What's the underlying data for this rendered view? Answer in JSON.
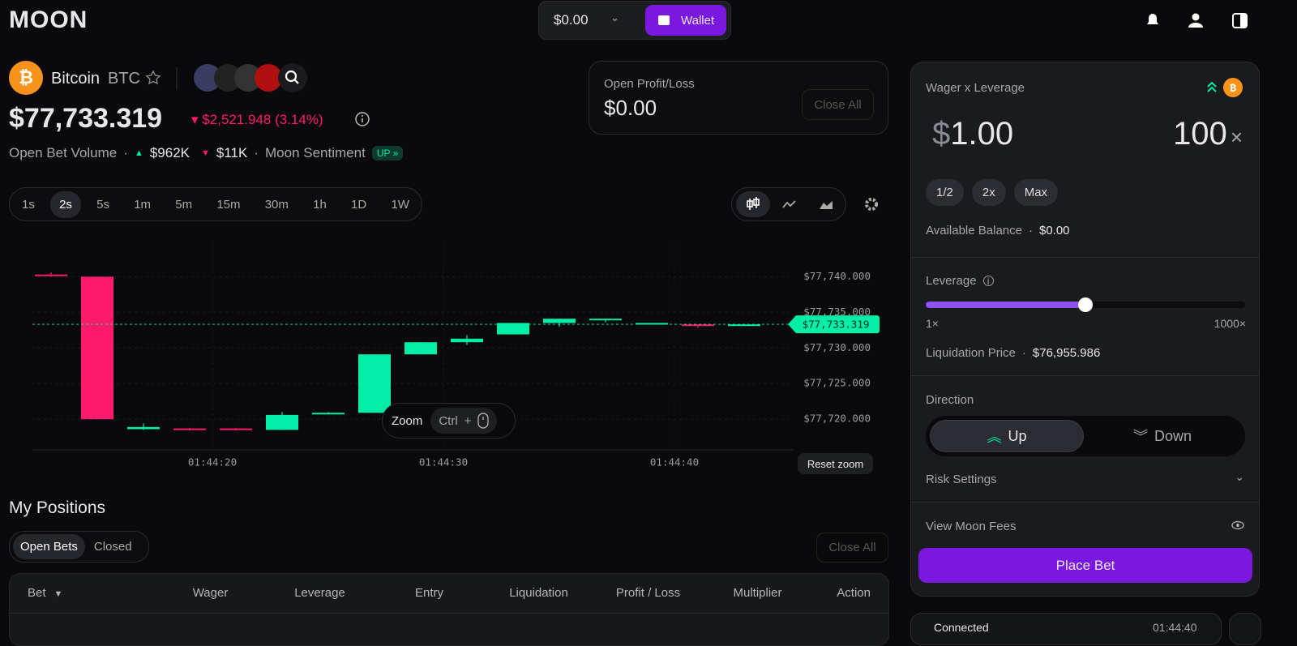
{
  "header": {
    "logo": "MOON",
    "balance": "$0.00",
    "wallet": "Wallet"
  },
  "asset": {
    "name": "Bitcoin",
    "symbol": "BTC",
    "price": "$77,733.319",
    "change": "$2,521.948 (3.14%)",
    "volume_label": "Open Bet Volume",
    "up_volume": "$962K",
    "down_volume": "$11K",
    "sentiment_label": "Moon Sentiment",
    "sentiment": "UP"
  },
  "pnl": {
    "label": "Open Profit/Loss",
    "value": "$0.00",
    "button": "Close All"
  },
  "intervals": [
    "1s",
    "2s",
    "5s",
    "1m",
    "5m",
    "15m",
    "30m",
    "1h",
    "1D",
    "1W"
  ],
  "chart_data": {
    "type": "candlestick",
    "open": [
      77740.3,
      77740.0,
      77718.6,
      77718.7,
      77718.7,
      77718.5,
      77720.7,
      77720.9,
      77729.1,
      77730.8,
      77731.9,
      77733.5,
      77733.9,
      77733.4,
      77733.3,
      77733.2
    ],
    "high": [
      77740.6,
      77740.0,
      77719.4,
      77718.8,
      77718.8,
      77721.0,
      77721.0,
      77729.1,
      77730.8,
      77731.8,
      77733.5,
      77734.1,
      77734.1,
      77733.5,
      77733.3,
      77733.3
    ],
    "low": [
      77740.0,
      77720.0,
      77718.5,
      77718.4,
      77718.4,
      77718.5,
      77720.7,
      77720.9,
      77729.1,
      77730.4,
      77731.9,
      77733.0,
      77733.6,
      77733.4,
      77732.8,
      77733.2
    ],
    "close": [
      77740.1,
      77720.0,
      77718.9,
      77718.5,
      77718.5,
      77720.6,
      77720.9,
      77729.1,
      77730.8,
      77731.3,
      77733.5,
      77734.1,
      77734.1,
      77733.5,
      77733.1,
      77733.3
    ],
    "up_color": "#00eea6",
    "down_color": "#ff1a6c",
    "ylim": [
      77715.7,
      77744.7
    ],
    "yticks": [
      {
        "value": 77720,
        "label": "$77,720.000"
      },
      {
        "value": 77725,
        "label": "$77,725.000"
      },
      {
        "value": 77730,
        "label": "$77,730.000"
      },
      {
        "value": 77735,
        "label": "$77,735.000"
      },
      {
        "value": 77740,
        "label": "$77,740.000"
      }
    ],
    "xticks": [
      "01:44:20",
      "01:44:30",
      "01:44:40"
    ],
    "last_price": {
      "value": 77733.319,
      "label": "$77,733.319"
    },
    "grid": true,
    "zoom": "Zoom",
    "zoom_key": "Ctrl",
    "zoom_plus": "+",
    "reset": "Reset zoom"
  },
  "positions": {
    "title": "My Positions",
    "tabs": [
      "Open Bets",
      "Closed"
    ],
    "close_all": "Close All",
    "columns": [
      "Bet",
      "Wager",
      "Leverage",
      "Entry",
      "Liquidation",
      "Profit / Loss",
      "Multiplier",
      "Action"
    ]
  },
  "bet_panel": {
    "title": "Wager x Leverage",
    "currency": "$",
    "wager": "1.00",
    "leverage": "100",
    "times": "×",
    "quick": [
      "1/2",
      "2x",
      "Max"
    ],
    "balance_label": "Available Balance",
    "balance": "$0.00",
    "leverage_label": "Leverage",
    "lev_min": "1×",
    "lev_max": "1000×",
    "liq_label": "Liquidation Price",
    "liq": "$76,955.986",
    "direction": "Direction",
    "up": "Up",
    "down": "Down",
    "risk": "Risk Settings",
    "fees": "View Moon Fees",
    "place": "Place Bet"
  },
  "footer": {
    "status": "Connected",
    "time": "01:44:40"
  }
}
